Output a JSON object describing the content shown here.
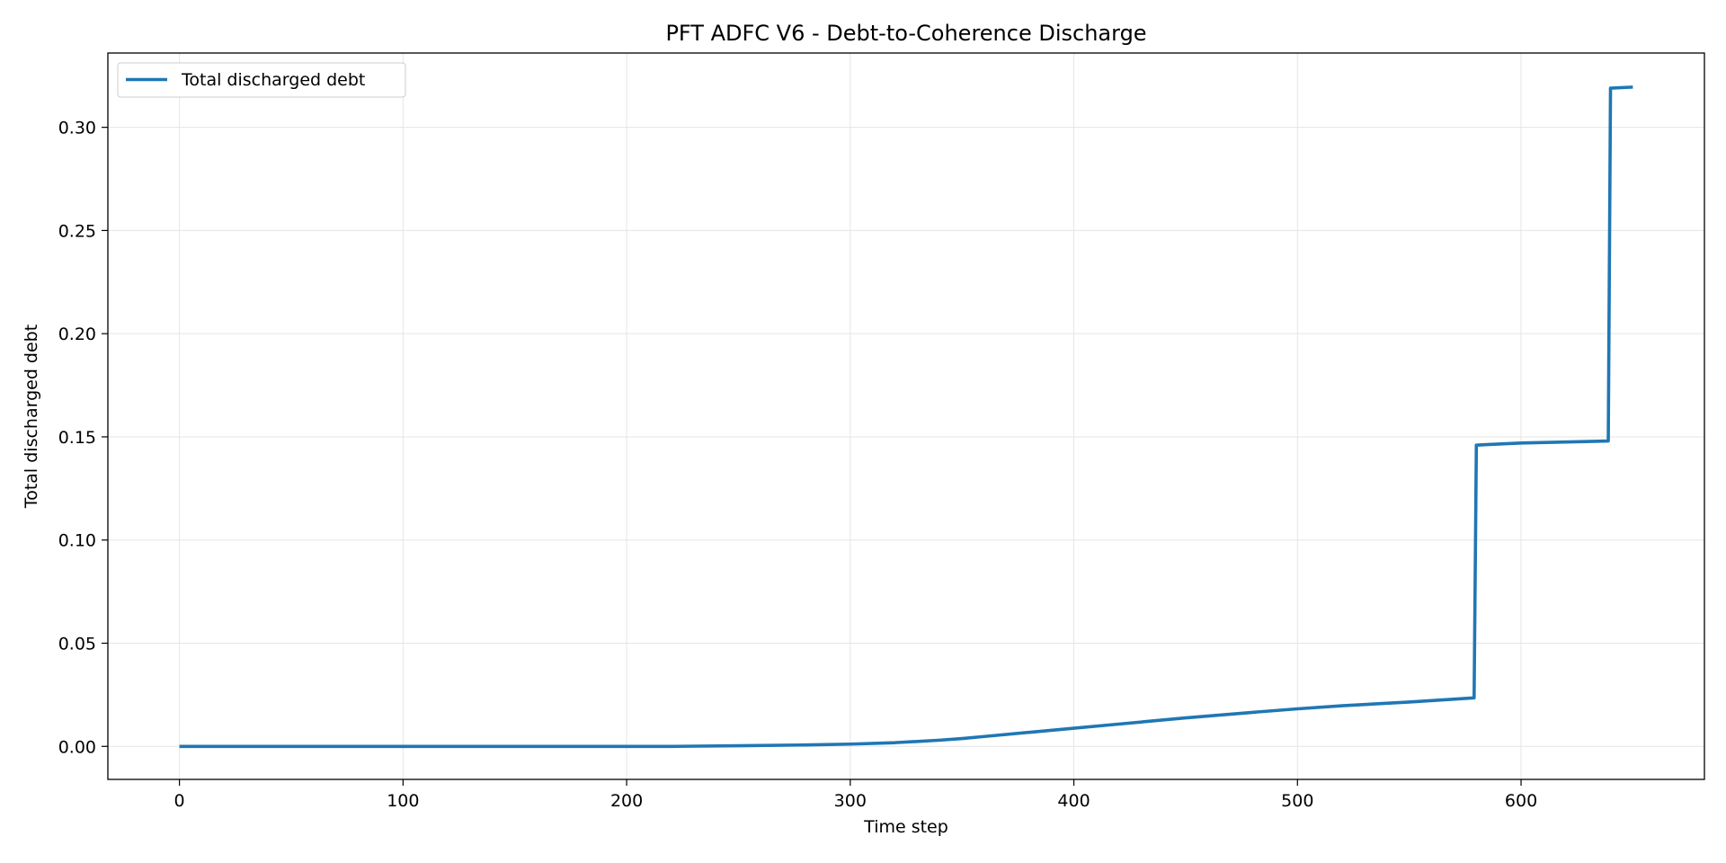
{
  "chart_data": {
    "type": "line",
    "title": "PFT ADFC V6 - Debt-to-Coherence Discharge",
    "xlabel": "Time step",
    "ylabel": "Total discharged debt",
    "xlim": [
      -32,
      682
    ],
    "ylim": [
      -0.016,
      0.336
    ],
    "xticks": [
      0,
      100,
      200,
      300,
      400,
      500,
      600
    ],
    "yticks": [
      0.0,
      0.05,
      0.1,
      0.15,
      0.2,
      0.25,
      0.3
    ],
    "ytick_labels": [
      "0.00",
      "0.05",
      "0.10",
      "0.15",
      "0.20",
      "0.25",
      "0.30"
    ],
    "grid": true,
    "legend_position": "upper-left",
    "series": [
      {
        "name": "Total discharged debt",
        "color": "#1f77b4",
        "x": [
          0,
          100,
          200,
          220,
          250,
          280,
          300,
          320,
          340,
          350,
          360,
          380,
          400,
          420,
          450,
          480,
          500,
          520,
          550,
          579,
          580,
          600,
          620,
          639,
          640,
          650
        ],
        "y": [
          0.0,
          0.0,
          0.0,
          0.0,
          0.0003,
          0.0007,
          0.0011,
          0.0018,
          0.003,
          0.0038,
          0.0048,
          0.0068,
          0.0088,
          0.0108,
          0.0138,
          0.0165,
          0.0182,
          0.0197,
          0.0215,
          0.0235,
          0.146,
          0.147,
          0.1475,
          0.148,
          0.319,
          0.3195
        ]
      }
    ]
  }
}
